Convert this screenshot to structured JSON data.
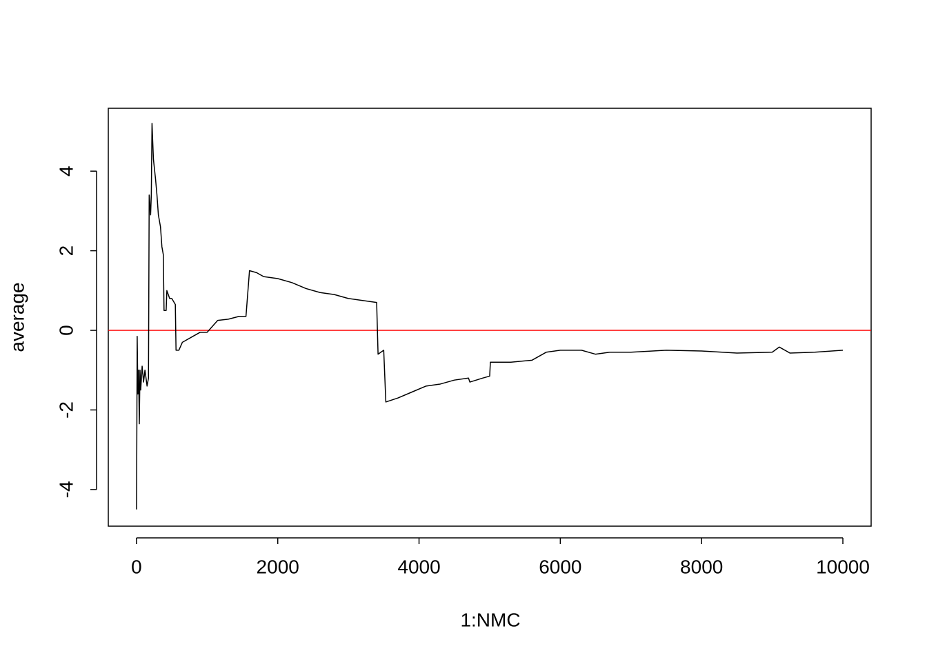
{
  "chart_data": {
    "type": "line",
    "x_label": "1:NMC",
    "y_label": "average",
    "x": [
      1,
      10,
      20,
      30,
      40,
      50,
      60,
      80,
      100,
      120,
      150,
      170,
      180,
      200,
      210,
      220,
      240,
      270,
      290,
      310,
      340,
      360,
      380,
      390,
      420,
      430,
      470,
      500,
      550,
      560,
      600,
      650,
      700,
      800,
      900,
      1000,
      1050,
      1150,
      1300,
      1450,
      1550,
      1600,
      1700,
      1800,
      2000,
      2200,
      2400,
      2600,
      2800,
      3000,
      3200,
      3400,
      3420,
      3500,
      3530,
      3700,
      3900,
      4100,
      4300,
      4500,
      4700,
      4720,
      4900,
      5000,
      5010,
      5300,
      5600,
      5800,
      6000,
      6300,
      6500,
      6700,
      7000,
      7500,
      8000,
      8500,
      9000,
      9100,
      9250,
      9600,
      10000
    ],
    "series": [
      {
        "color": "#000000",
        "values": [
          -4.5,
          -0.15,
          -1.6,
          -1.0,
          -2.35,
          -1.0,
          -1.5,
          -0.9,
          -1.3,
          -1.0,
          -1.4,
          -1.2,
          3.4,
          2.9,
          3.4,
          5.2,
          4.3,
          3.8,
          3.4,
          2.9,
          2.6,
          2.1,
          1.9,
          0.5,
          0.5,
          1.0,
          0.8,
          0.8,
          0.65,
          -0.5,
          -0.5,
          -0.3,
          -0.25,
          -0.15,
          -0.05,
          -0.05,
          0.05,
          0.25,
          0.28,
          0.35,
          0.35,
          1.5,
          1.45,
          1.35,
          1.3,
          1.2,
          1.05,
          0.95,
          0.9,
          0.8,
          0.75,
          0.7,
          -0.6,
          -0.5,
          -1.8,
          -1.7,
          -1.55,
          -1.4,
          -1.35,
          -1.25,
          -1.2,
          -1.3,
          -1.2,
          -1.15,
          -0.8,
          -0.8,
          -0.75,
          -0.55,
          -0.5,
          -0.5,
          -0.6,
          -0.55,
          -0.55,
          -0.5,
          -0.52,
          -0.57,
          -0.55,
          -0.42,
          -0.57,
          -0.55,
          -0.5
        ]
      }
    ],
    "hlines": [
      {
        "value": 0,
        "color": "#ff0000"
      }
    ],
    "xlim": [
      -399,
      10400
    ],
    "xticks": [
      0,
      2000,
      4000,
      6000,
      8000,
      10000
    ],
    "ylim": [
      -4.92,
      5.58
    ],
    "yticks": [
      -4,
      -2,
      0,
      2,
      4
    ]
  }
}
